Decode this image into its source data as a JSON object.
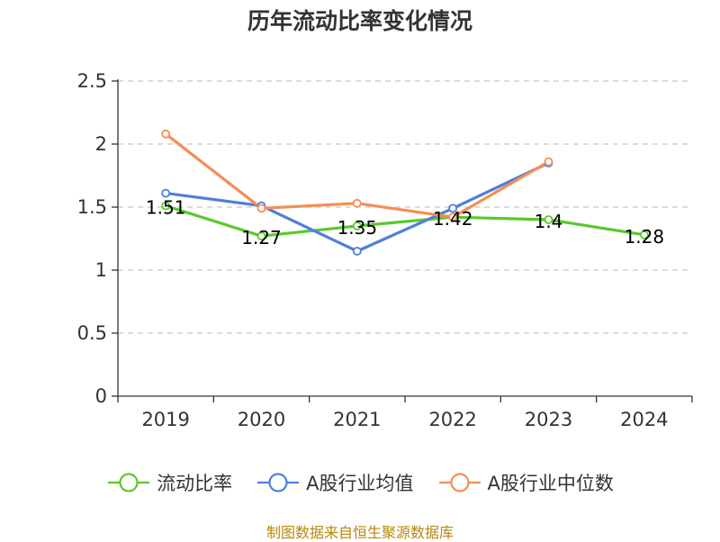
{
  "chart_data": {
    "type": "line",
    "title": "历年流动比率变化情况",
    "categories": [
      "2019",
      "2020",
      "2021",
      "2022",
      "2023",
      "2024"
    ],
    "series": [
      {
        "name": "流动比率",
        "color": "#5ac82c",
        "values": [
          1.51,
          1.27,
          1.35,
          1.42,
          1.4,
          1.28
        ],
        "show_labels": true
      },
      {
        "name": "A股行业均值",
        "color": "#4f7fdb",
        "values": [
          1.61,
          1.51,
          1.15,
          1.49,
          1.85,
          null
        ],
        "show_labels": false
      },
      {
        "name": "A股行业中位数",
        "color": "#f58e55",
        "values": [
          2.08,
          1.49,
          1.53,
          1.42,
          1.86,
          null
        ],
        "show_labels": false
      }
    ],
    "data_labels": [
      "1.51",
      "1.27",
      "1.35",
      "1.42",
      "1.4",
      "1.28"
    ],
    "ylim": [
      0,
      2.5
    ],
    "yticks": [
      0,
      0.5,
      1,
      1.5,
      2,
      2.5
    ],
    "ytick_labels": [
      "0",
      "0.5",
      "1",
      "1.5",
      "2",
      "2.5"
    ],
    "grid": true,
    "legend_position": "bottom"
  },
  "source": "制图数据来自恒生聚源数据库"
}
